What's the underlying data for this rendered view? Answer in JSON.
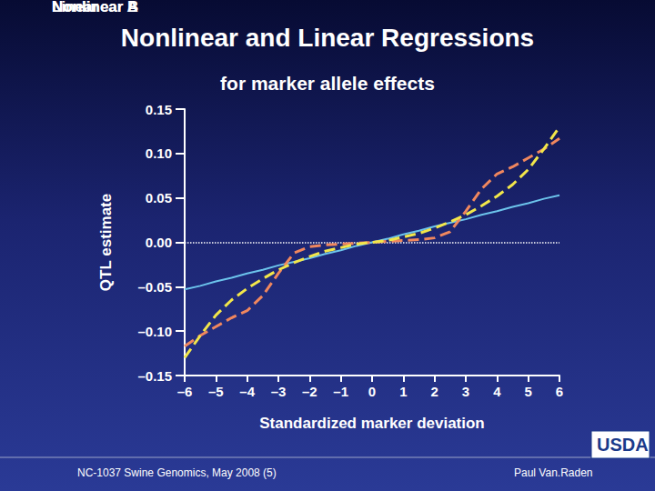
{
  "chart_data": {
    "type": "line",
    "title": "Nonlinear and Linear Regressions",
    "subtitle": "for marker allele effects",
    "x_label": "Standardized marker deviation",
    "y_label": "QTL estimate",
    "x": [
      -6,
      -5.5,
      -5,
      -4.5,
      -4,
      -3.5,
      -3,
      -2.5,
      -2,
      -1.5,
      -1,
      -0.5,
      0,
      0.5,
      1,
      1.5,
      2,
      2.5,
      3,
      3.5,
      4,
      4.5,
      5,
      5.5,
      6
    ],
    "series": [
      {
        "name": "Nonlinear A",
        "color": "#f2e64a",
        "line_style": "dashed",
        "values": [
          -0.13,
          -0.105,
          -0.082,
          -0.065,
          -0.052,
          -0.041,
          -0.031,
          -0.023,
          -0.016,
          -0.01,
          -0.006,
          -0.002,
          0,
          0.002,
          0.006,
          0.01,
          0.016,
          0.023,
          0.031,
          0.041,
          0.052,
          0.065,
          0.082,
          0.105,
          0.13
        ]
      },
      {
        "name": "Nonlinear B",
        "color": "#f0875e",
        "line_style": "dashed",
        "values": [
          -0.117,
          -0.105,
          -0.095,
          -0.085,
          -0.077,
          -0.06,
          -0.035,
          -0.012,
          -0.005,
          -0.003,
          -0.002,
          -0.001,
          0,
          0.001,
          0.002,
          0.003,
          0.005,
          0.012,
          0.035,
          0.06,
          0.077,
          0.085,
          0.095,
          0.105,
          0.117
        ]
      },
      {
        "name": "Linear",
        "color": "#6cc4ec",
        "line_style": "solid",
        "values": [
          -0.053,
          -0.049,
          -0.044,
          -0.04,
          -0.035,
          -0.031,
          -0.026,
          -0.022,
          -0.018,
          -0.013,
          -0.009,
          -0.004,
          0,
          0.004,
          0.009,
          0.013,
          0.018,
          0.022,
          0.026,
          0.031,
          0.035,
          0.04,
          0.044,
          0.049,
          0.053
        ]
      }
    ],
    "xlim": [
      -6,
      6
    ],
    "xticks": [
      {
        "value": -6,
        "label": "–6"
      },
      {
        "value": -5,
        "label": "–5"
      },
      {
        "value": -4,
        "label": "–4"
      },
      {
        "value": -3,
        "label": "–3"
      },
      {
        "value": -2,
        "label": "–2"
      },
      {
        "value": -1,
        "label": "–1"
      },
      0,
      1,
      2,
      3,
      4,
      5,
      6
    ],
    "ylim": [
      -0.15,
      0.15
    ],
    "yticks": [
      {
        "value": -0.15,
        "label": "–0.15"
      },
      {
        "value": -0.1,
        "label": "–0.10"
      },
      {
        "value": -0.05,
        "label": "–0.05"
      },
      {
        "value": 0,
        "label": "0.00"
      },
      0.05,
      {
        "value": 0.1,
        "label": "0.10"
      },
      0.15
    ],
    "reference_lines": [
      {
        "y": 0,
        "line_style": "dotted"
      }
    ],
    "grid": false,
    "legend": "lower right",
    "annotations": [
      "NC-1037 Swine Genomics, May 2008 (5)",
      "Paul Van.Raden",
      "USDA"
    ]
  }
}
